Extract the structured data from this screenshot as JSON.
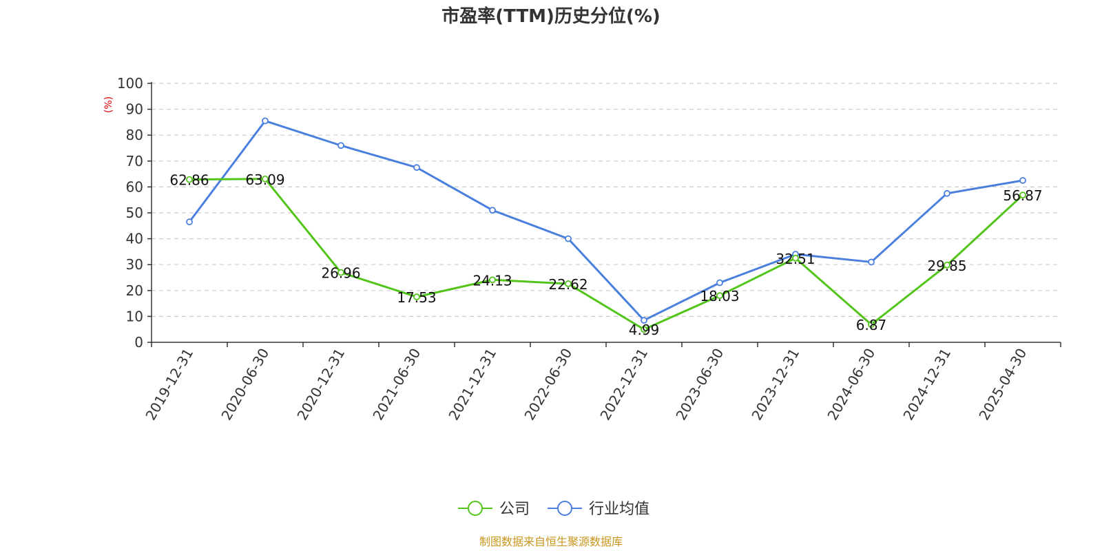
{
  "chart_data": {
    "type": "line",
    "title": "市盈率(TTM)历史分位(%)",
    "ylabel": "(%)",
    "categories": [
      "2019-12-31",
      "2020-06-30",
      "2020-12-31",
      "2021-06-30",
      "2021-12-31",
      "2022-06-30",
      "2022-12-31",
      "2023-06-30",
      "2023-12-31",
      "2024-06-30",
      "2024-12-31",
      "2025-04-30"
    ],
    "yticks": [
      "0",
      "10",
      "20",
      "30",
      "40",
      "50",
      "60",
      "70",
      "80",
      "90",
      "100"
    ],
    "ylim": [
      0,
      100
    ],
    "grid": true,
    "legend_position": "bottom",
    "series": [
      {
        "name": "公司",
        "color": "#52c41a",
        "values": [
          62.86,
          63.09,
          26.96,
          17.53,
          24.13,
          22.62,
          4.99,
          18.03,
          32.51,
          6.87,
          29.85,
          56.87
        ],
        "labels": [
          "62.86",
          "63.09",
          "26.96",
          "17.53",
          "24.13",
          "22.62",
          "4.99",
          "18.03",
          "32.51",
          "6.87",
          "29.85",
          "56.87"
        ]
      },
      {
        "name": "行业均值",
        "color": "#4a7fde",
        "values": [
          46.5,
          85.5,
          76.0,
          67.5,
          51.0,
          40.0,
          8.5,
          23.0,
          34.0,
          31.0,
          57.5,
          62.5
        ]
      }
    ],
    "source": "制图数据来自恒生聚源数据库"
  }
}
